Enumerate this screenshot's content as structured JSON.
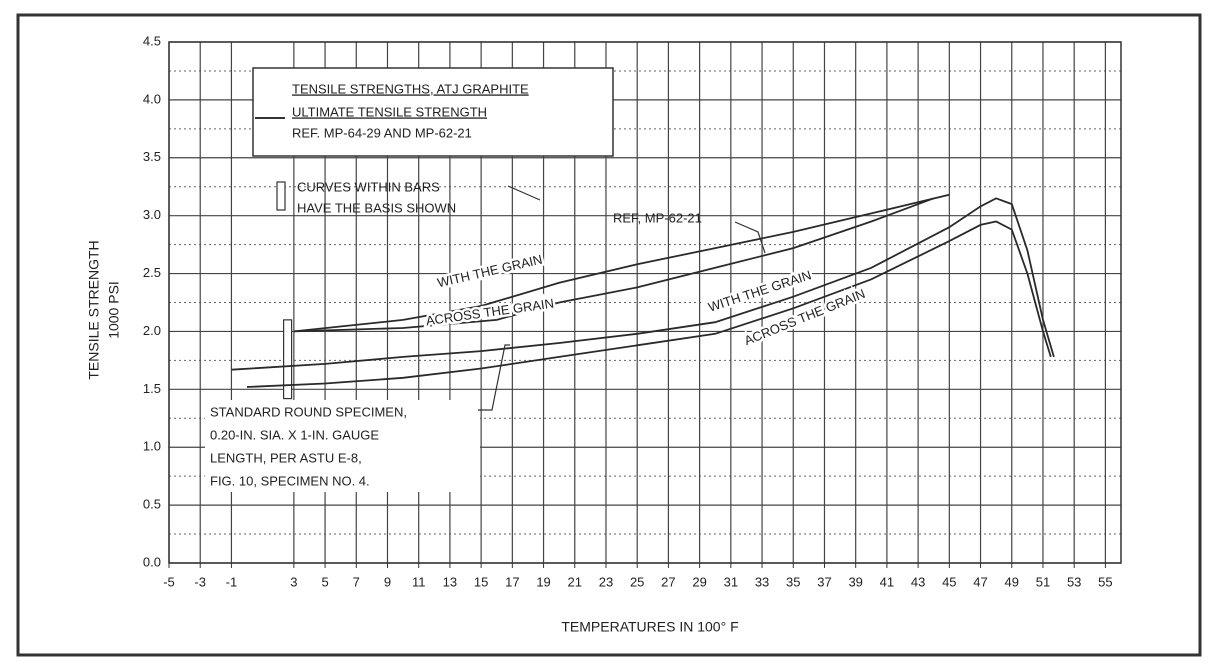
{
  "chart_data": {
    "type": "line",
    "legend_box": [
      "TENSILE STRENGTHS, ATJ GRAPHITE",
      "ULTIMATE TENSILE STRENGTH",
      "REF. MP-64-29 AND MP-62-21"
    ],
    "annotations": [
      "CURVES WITHIN BARS",
      "HAVE THE BASIS SHOWN",
      "REF, MP-62-21",
      "STANDARD ROUND SPECIMEN,",
      "0.20-IN. SIA. X 1-IN. GAUGE",
      "LENGTH, PER ASTU E-8,",
      "FIG. 10, SPECIMEN NO. 4."
    ],
    "y_label": [
      "TENSILE STRENGTH",
      "1000 PSI"
    ],
    "x_label": "TEMPERATURES IN 100° F",
    "xlim": [
      -5,
      56
    ],
    "xticks": [
      -5,
      -3,
      -1,
      3,
      5,
      7,
      9,
      11,
      13,
      15,
      17,
      19,
      21,
      23,
      25,
      27,
      29,
      31,
      33,
      35,
      37,
      39,
      41,
      43,
      45,
      47,
      49,
      51,
      53,
      55
    ],
    "ylim": [
      0,
      4.5
    ],
    "yticks": [
      {
        "value": 0,
        "label": "0.0"
      },
      0.5,
      {
        "value": 1,
        "label": "1.0"
      },
      1.5,
      {
        "value": 2,
        "label": "2.0"
      },
      2.5,
      {
        "value": 3,
        "label": "3.0"
      },
      3.5,
      {
        "value": 4,
        "label": "4.0"
      },
      4.5
    ],
    "grid": true,
    "series": [
      {
        "name": "WITH THE GRAIN",
        "color": "#2a2a2a",
        "x": [
          3,
          10,
          15,
          20,
          25,
          30,
          35,
          40,
          45
        ],
        "values": [
          2.0,
          2.1,
          2.22,
          2.42,
          2.58,
          2.72,
          2.86,
          3.02,
          3.18
        ]
      },
      {
        "name": "ACROSS THE GRAIN",
        "color": "#2a2a2a",
        "x": [
          3,
          10,
          16,
          20,
          25,
          30,
          35,
          40,
          44
        ],
        "values": [
          2.0,
          2.03,
          2.1,
          2.25,
          2.38,
          2.55,
          2.72,
          2.95,
          3.15
        ]
      },
      {
        "name": "WITH THE GRAIN",
        "color": "#2a2a2a",
        "x": [
          -1,
          5,
          10,
          15,
          20,
          25,
          30,
          35,
          40,
          45,
          47,
          48,
          49,
          50,
          51,
          51.7
        ],
        "values": [
          1.67,
          1.72,
          1.78,
          1.83,
          1.9,
          1.98,
          2.08,
          2.3,
          2.55,
          2.9,
          3.08,
          3.15,
          3.1,
          2.7,
          2.1,
          1.78
        ]
      },
      {
        "name": "ACROSS THE GRAIN",
        "color": "#2a2a2a",
        "x": [
          0,
          5,
          10,
          15,
          20,
          25,
          30,
          35,
          40,
          45,
          47,
          48,
          49,
          50,
          51,
          51.5
        ],
        "values": [
          1.52,
          1.55,
          1.6,
          1.68,
          1.78,
          1.88,
          1.98,
          2.2,
          2.45,
          2.78,
          2.92,
          2.95,
          2.88,
          2.5,
          2.0,
          1.78
        ]
      }
    ]
  }
}
